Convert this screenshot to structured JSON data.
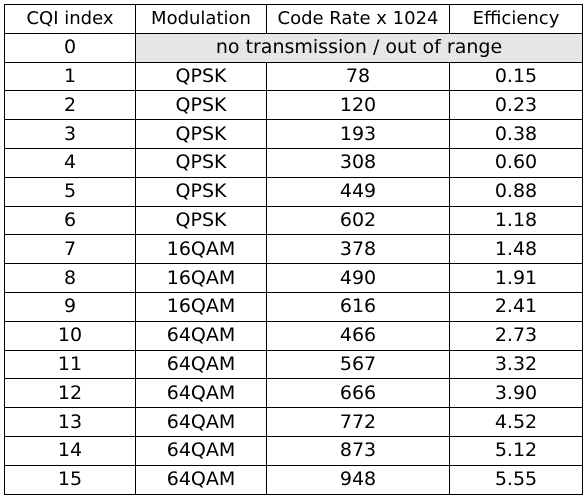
{
  "table": {
    "headers": [
      "CQI index",
      "Modulation",
      "Code Rate x 1024",
      "Efficiency"
    ],
    "special_row": {
      "cqi": "0",
      "note": "no transmission / out of range",
      "note_bg": "#e6e6e6"
    },
    "rows": [
      {
        "cqi": "1",
        "modulation": "QPSK",
        "code_rate": "78",
        "efficiency": "0.15"
      },
      {
        "cqi": "2",
        "modulation": "QPSK",
        "code_rate": "120",
        "efficiency": "0.23"
      },
      {
        "cqi": "3",
        "modulation": "QPSK",
        "code_rate": "193",
        "efficiency": "0.38"
      },
      {
        "cqi": "4",
        "modulation": "QPSK",
        "code_rate": "308",
        "efficiency": "0.60"
      },
      {
        "cqi": "5",
        "modulation": "QPSK",
        "code_rate": "449",
        "efficiency": "0.88"
      },
      {
        "cqi": "6",
        "modulation": "QPSK",
        "code_rate": "602",
        "efficiency": "1.18"
      },
      {
        "cqi": "7",
        "modulation": "16QAM",
        "code_rate": "378",
        "efficiency": "1.48"
      },
      {
        "cqi": "8",
        "modulation": "16QAM",
        "code_rate": "490",
        "efficiency": "1.91"
      },
      {
        "cqi": "9",
        "modulation": "16QAM",
        "code_rate": "616",
        "efficiency": "2.41"
      },
      {
        "cqi": "10",
        "modulation": "64QAM",
        "code_rate": "466",
        "efficiency": "2.73"
      },
      {
        "cqi": "11",
        "modulation": "64QAM",
        "code_rate": "567",
        "efficiency": "3.32"
      },
      {
        "cqi": "12",
        "modulation": "64QAM",
        "code_rate": "666",
        "efficiency": "3.90"
      },
      {
        "cqi": "13",
        "modulation": "64QAM",
        "code_rate": "772",
        "efficiency": "4.52"
      },
      {
        "cqi": "14",
        "modulation": "64QAM",
        "code_rate": "873",
        "efficiency": "5.12"
      },
      {
        "cqi": "15",
        "modulation": "64QAM",
        "code_rate": "948",
        "efficiency": "5.55"
      }
    ]
  }
}
